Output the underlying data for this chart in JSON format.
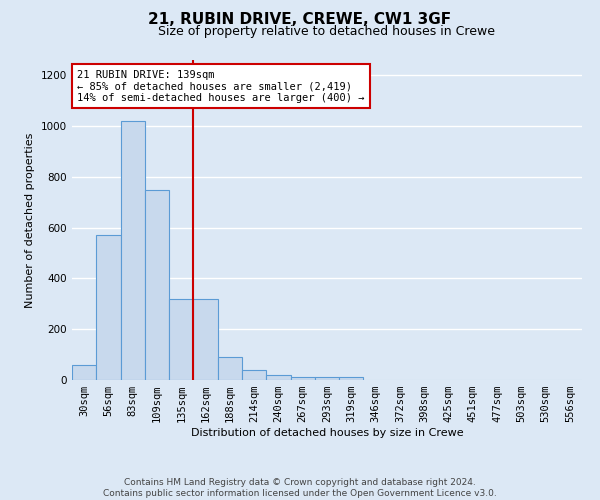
{
  "title_line1": "21, RUBIN DRIVE, CREWE, CW1 3GF",
  "title_line2": "Size of property relative to detached houses in Crewe",
  "xlabel": "Distribution of detached houses by size in Crewe",
  "ylabel": "Number of detached properties",
  "bar_labels": [
    "30sqm",
    "56sqm",
    "83sqm",
    "109sqm",
    "135sqm",
    "162sqm",
    "188sqm",
    "214sqm",
    "240sqm",
    "267sqm",
    "293sqm",
    "319sqm",
    "346sqm",
    "372sqm",
    "398sqm",
    "425sqm",
    "451sqm",
    "477sqm",
    "503sqm",
    "530sqm",
    "556sqm"
  ],
  "bar_heights": [
    60,
    570,
    1020,
    750,
    320,
    320,
    90,
    40,
    20,
    10,
    10,
    10,
    0,
    0,
    0,
    0,
    0,
    0,
    0,
    0,
    0
  ],
  "bar_color": "#c8d9ed",
  "bar_edge_color": "#5b9bd5",
  "background_color": "#dce8f5",
  "grid_color": "#ffffff",
  "vline_x": 4.5,
  "vline_color": "#cc0000",
  "annotation_text": "21 RUBIN DRIVE: 139sqm\n← 85% of detached houses are smaller (2,419)\n14% of semi-detached houses are larger (400) →",
  "annotation_box_color": "#ffffff",
  "annotation_border_color": "#cc0000",
  "ylim": [
    0,
    1260
  ],
  "yticks": [
    0,
    200,
    400,
    600,
    800,
    1000,
    1200
  ],
  "footer_line1": "Contains HM Land Registry data © Crown copyright and database right 2024.",
  "footer_line2": "Contains public sector information licensed under the Open Government Licence v3.0.",
  "title_fontsize": 11,
  "subtitle_fontsize": 9,
  "axis_label_fontsize": 8,
  "tick_fontsize": 7.5,
  "annotation_fontsize": 7.5,
  "footer_fontsize": 6.5
}
